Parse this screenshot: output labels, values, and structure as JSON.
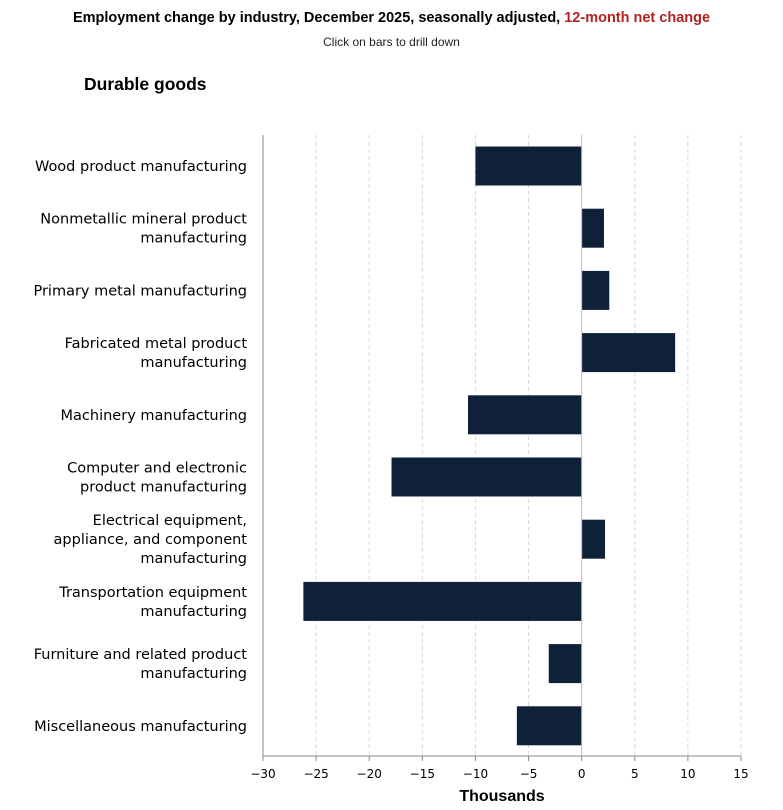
{
  "header": {
    "title_main": "Employment change by industry, December 2025, seasonally adjusted,",
    "title_highlight": "12-month net change",
    "subtitle": "Click on bars to drill down"
  },
  "colors": {
    "bar": "#0f2139",
    "title_highlight": "#b22222",
    "grid": "#d9d9d9",
    "axis": "#888888"
  },
  "chart_data": {
    "type": "bar",
    "orientation": "horizontal",
    "title": "Durable goods",
    "xlabel": "Thousands",
    "ylabel": "",
    "xlim": [
      -30,
      15
    ],
    "xticks": [
      -30,
      -25,
      -20,
      -15,
      -10,
      -5,
      0,
      5,
      10,
      15
    ],
    "xtick_labels": [
      "−30",
      "−25",
      "−20",
      "−15",
      "−10",
      "−5",
      "0",
      "5",
      "10",
      "15"
    ],
    "grid": "vertical dashed",
    "categories": [
      "Wood product manufacturing",
      "Nonmetallic mineral product manufacturing",
      "Primary metal manufacturing",
      "Fabricated metal product manufacturing",
      "Machinery manufacturing",
      "Computer and electronic product manufacturing",
      "Electrical equipment, appliance, and component manufacturing",
      "Transportation equipment manufacturing",
      "Furniture and related product manufacturing",
      "Miscellaneous manufacturing"
    ],
    "category_label_lines": [
      [
        "Wood product manufacturing"
      ],
      [
        "Nonmetallic mineral product",
        "manufacturing"
      ],
      [
        "Primary metal manufacturing"
      ],
      [
        "Fabricated metal product",
        "manufacturing"
      ],
      [
        "Machinery manufacturing"
      ],
      [
        "Computer and electronic",
        "product manufacturing"
      ],
      [
        "Electrical equipment,",
        "appliance, and component",
        "manufacturing"
      ],
      [
        "Transportation equipment",
        "manufacturing"
      ],
      [
        "Furniture and related product",
        "manufacturing"
      ],
      [
        "Miscellaneous manufacturing"
      ]
    ],
    "values": [
      -10.0,
      2.1,
      2.6,
      8.8,
      -10.7,
      -17.9,
      2.2,
      -26.2,
      -3.1,
      -6.1
    ]
  }
}
